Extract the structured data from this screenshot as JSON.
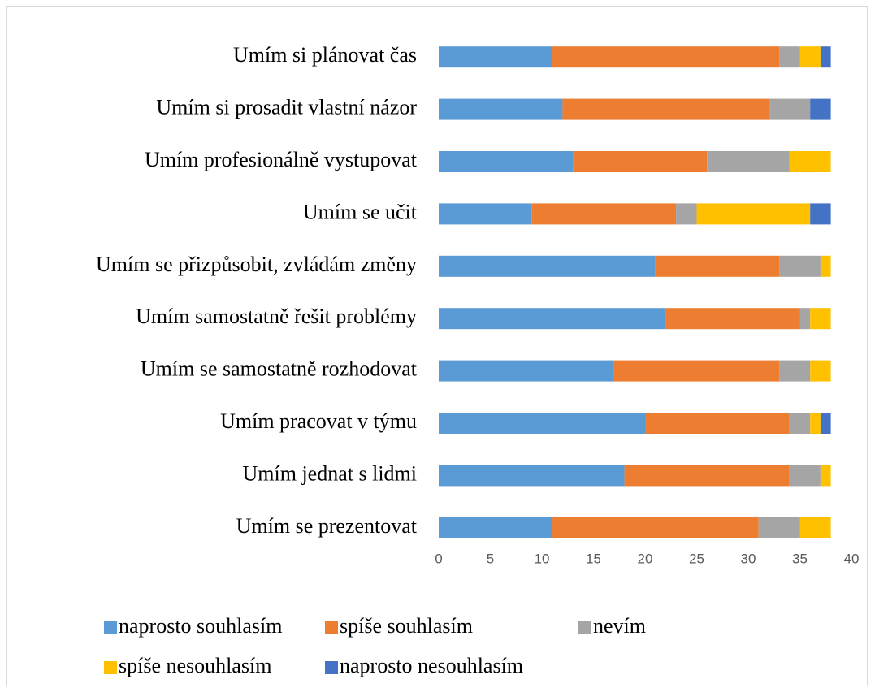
{
  "chart_data": {
    "type": "stacked_bar_horizontal",
    "categories": [
      "Umím si plánovat čas",
      "Umím si prosadit vlastní názor",
      "Umím profesionálně vystupovat",
      "Umím se učit",
      "Umím se přizpůsobit, zvládám změny",
      "Umím samostatně řešit problémy",
      "Umím se samostatně rozhodovat",
      "Umím pracovat v týmu",
      "Umím jednat s lidmi",
      "Umím se prezentovat"
    ],
    "series": [
      {
        "name": "naprosto souhlasím",
        "color": "#5b9bd5",
        "values": [
          11,
          12,
          13,
          9,
          21,
          22,
          17,
          20,
          18,
          11
        ]
      },
      {
        "name": "spíše souhlasím",
        "color": "#ed7d31",
        "values": [
          22,
          20,
          13,
          14,
          12,
          13,
          16,
          14,
          16,
          20
        ]
      },
      {
        "name": "nevím",
        "color": "#a5a5a5",
        "values": [
          2,
          4,
          8,
          2,
          4,
          1,
          3,
          2,
          3,
          4
        ]
      },
      {
        "name": "spíše nesouhlasím",
        "color": "#ffc000",
        "values": [
          2,
          0,
          4,
          11,
          1,
          2,
          2,
          1,
          1,
          3
        ]
      },
      {
        "name": "naprosto nesouhlasím",
        "color": "#4472c4",
        "values": [
          1,
          2,
          0,
          2,
          0,
          0,
          0,
          1,
          0,
          0
        ]
      }
    ],
    "xlim": [
      0,
      40
    ],
    "xticks": [
      0,
      5,
      10,
      15,
      20,
      25,
      30,
      35,
      40
    ],
    "grid": false,
    "legend": "bottom"
  }
}
